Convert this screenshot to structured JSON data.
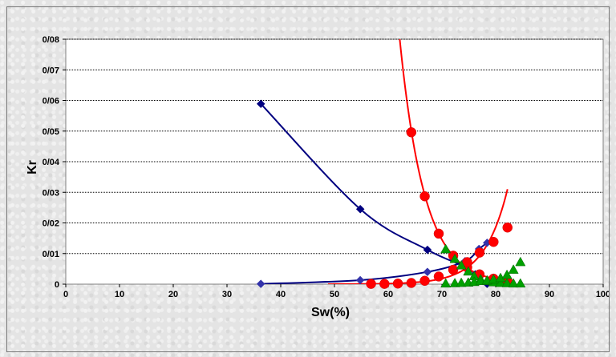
{
  "chart_data": {
    "type": "scatter",
    "xlabel": "Sw(%)",
    "ylabel": "Kr",
    "xlim": [
      0,
      100
    ],
    "ylim": [
      0,
      0.08
    ],
    "x_ticks": [
      "0",
      "10",
      "20",
      "30",
      "40",
      "50",
      "60",
      "70",
      "80",
      "90",
      "100"
    ],
    "y_ticks": [
      "0",
      "0/01",
      "0/02",
      "0/03",
      "0/04",
      "0/05",
      "0/06",
      "0/07",
      "0/08"
    ],
    "grid": "horizontal",
    "legend": "none",
    "series": [
      {
        "color": "#000080",
        "marker": "diamond",
        "points": [
          [
            36.3,
            0.0589
          ],
          [
            54.8,
            0.0245
          ],
          [
            67.3,
            0.0112
          ],
          [
            74.3,
            0.0057
          ],
          [
            76.2,
            0.0032
          ],
          [
            78.4,
            0.0001
          ]
        ]
      },
      {
        "color": "#3333aa",
        "marker": "diamond",
        "points": [
          [
            36.3,
            0.0001
          ],
          [
            54.8,
            0.0013
          ],
          [
            67.3,
            0.004
          ],
          [
            74.3,
            0.0075
          ],
          [
            76.9,
            0.0115
          ],
          [
            78.4,
            0.0135
          ]
        ]
      },
      {
        "color": "#ff0000",
        "marker": "circle",
        "fit": "exponential",
        "points": [
          [
            64.3,
            0.0496
          ],
          [
            66.8,
            0.0287
          ],
          [
            69.4,
            0.0165
          ],
          [
            72.1,
            0.0093
          ],
          [
            74.7,
            0.0055
          ],
          [
            77.0,
            0.0032
          ],
          [
            79.6,
            0.0018
          ],
          [
            82.2,
            0.001
          ]
        ]
      },
      {
        "color": "#ff0000",
        "marker": "circle",
        "fit": "exponential",
        "points": [
          [
            56.8,
            0.0001
          ],
          [
            59.3,
            0.0001
          ],
          [
            61.8,
            0.0002
          ],
          [
            64.3,
            0.0004
          ],
          [
            66.8,
            0.0011
          ],
          [
            69.4,
            0.0025
          ],
          [
            72.1,
            0.0047
          ],
          [
            74.7,
            0.0072
          ],
          [
            77.0,
            0.0103
          ],
          [
            79.6,
            0.0138
          ],
          [
            82.2,
            0.0185
          ]
        ]
      },
      {
        "color": "#00a000",
        "marker": "triangle",
        "points": [
          [
            70.7,
            0.0112
          ],
          [
            72.4,
            0.008
          ],
          [
            73.6,
            0.0059
          ],
          [
            74.9,
            0.0039
          ],
          [
            76.0,
            0.0024
          ],
          [
            77.2,
            0.0014
          ],
          [
            78.4,
            0.0008
          ],
          [
            79.6,
            0.0004
          ],
          [
            80.9,
            0.0002
          ],
          [
            82.1,
            0.0001
          ],
          [
            83.3,
            0.0
          ],
          [
            84.6,
            0.0
          ]
        ]
      },
      {
        "color": "#00a000",
        "marker": "triangle",
        "points": [
          [
            70.7,
            0.0
          ],
          [
            72.4,
            0.0001
          ],
          [
            73.6,
            0.0002
          ],
          [
            74.9,
            0.0003
          ],
          [
            76.0,
            0.0005
          ],
          [
            77.2,
            0.0008
          ],
          [
            78.4,
            0.001
          ],
          [
            79.6,
            0.0013
          ],
          [
            80.9,
            0.0018
          ],
          [
            82.1,
            0.0028
          ],
          [
            83.3,
            0.0045
          ],
          [
            84.6,
            0.007
          ]
        ]
      }
    ]
  }
}
